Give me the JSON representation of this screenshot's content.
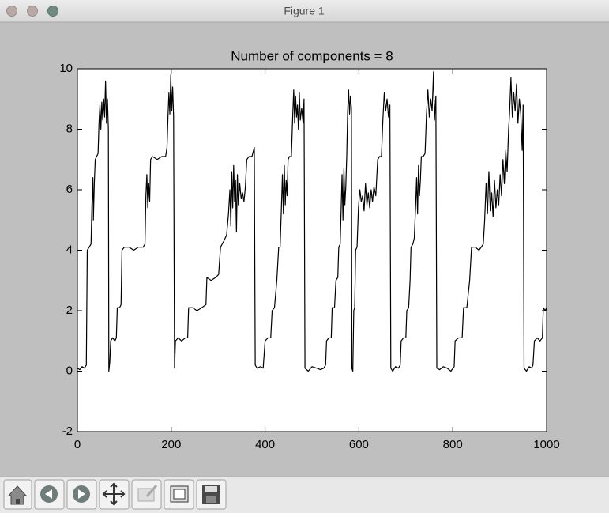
{
  "window": {
    "title": "Figure 1"
  },
  "chart_data": {
    "type": "line",
    "title": "Number of components = 8",
    "color": "#000000",
    "xlim": [
      0,
      1000
    ],
    "xticks": [
      0,
      200,
      400,
      600,
      800,
      1000
    ],
    "ylim": [
      -2,
      10
    ],
    "yticks": [
      -2,
      0,
      2,
      4,
      6,
      8,
      10
    ],
    "grid": false,
    "x": [
      0,
      5,
      10,
      15,
      19,
      21,
      25,
      29,
      31,
      33,
      34,
      36,
      38,
      41,
      44,
      46,
      48,
      50,
      52,
      54,
      56,
      58,
      60,
      62,
      64,
      66,
      67,
      69,
      71,
      75,
      80,
      83,
      85,
      90,
      93,
      95,
      100,
      110,
      120,
      130,
      140,
      144,
      146,
      148,
      150,
      152,
      154,
      156,
      160,
      170,
      180,
      188,
      191,
      193,
      195,
      197,
      199,
      201,
      203,
      205,
      207,
      209,
      215,
      222,
      230,
      235,
      237,
      245,
      255,
      265,
      274,
      276,
      285,
      295,
      301,
      305,
      312,
      318,
      322,
      325,
      327,
      329,
      331,
      333,
      335,
      337,
      339,
      341,
      343,
      346,
      349,
      352,
      355,
      358,
      361,
      366,
      372,
      377,
      379,
      383,
      390,
      396,
      400,
      406,
      412,
      415,
      420,
      425,
      429,
      432,
      435,
      437,
      439,
      441,
      443,
      445,
      447,
      449,
      452,
      456,
      459,
      461,
      463,
      465,
      467,
      469,
      471,
      473,
      475,
      478,
      481,
      483,
      485,
      492,
      500,
      510,
      518,
      525,
      529,
      531,
      536,
      541,
      543,
      548,
      551,
      555,
      557,
      560,
      562,
      564,
      566,
      568,
      570,
      572,
      574,
      576,
      578,
      580,
      582,
      584,
      585,
      587,
      589,
      591,
      593,
      596,
      599,
      602,
      605,
      608,
      611,
      614,
      617,
      620,
      623,
      626,
      629,
      632,
      636,
      640,
      644,
      648,
      651,
      654,
      657,
      660,
      663,
      666,
      668,
      672,
      678,
      684,
      688,
      690,
      695,
      700,
      702,
      706,
      709,
      711,
      715,
      718,
      721,
      723,
      725,
      727,
      729,
      731,
      733,
      737,
      741,
      744,
      747,
      750,
      753,
      756,
      759,
      761,
      764,
      766,
      772,
      780,
      788,
      796,
      803,
      805,
      812,
      820,
      823,
      830,
      836,
      840,
      848,
      856,
      865,
      868,
      871,
      874,
      877,
      880,
      883,
      886,
      889,
      892,
      895,
      898,
      901,
      904,
      907,
      910,
      913,
      916,
      919,
      921,
      924,
      927,
      930,
      933,
      936,
      939,
      942,
      945,
      948,
      950,
      952,
      957,
      963,
      968,
      971,
      974,
      980,
      986,
      991,
      993,
      997,
      1000
    ],
    "values": [
      0.1,
      0.05,
      0.15,
      0.1,
      0.2,
      4.0,
      4.1,
      4.2,
      5.5,
      6.4,
      5.0,
      6.2,
      7.0,
      7.1,
      7.2,
      8.2,
      8.8,
      8.0,
      8.9,
      8.3,
      9.0,
      8.4,
      9.6,
      8.2,
      9.0,
      8.0,
      0.0,
      0.3,
      1.0,
      1.1,
      1.0,
      1.1,
      2.1,
      2.1,
      2.2,
      4.0,
      4.1,
      4.1,
      4.0,
      4.1,
      4.1,
      4.2,
      5.8,
      6.5,
      5.4,
      6.2,
      5.6,
      7.0,
      7.1,
      7.0,
      7.1,
      7.1,
      7.4,
      8.4,
      9.2,
      8.5,
      9.8,
      8.6,
      9.4,
      8.4,
      0.1,
      1.0,
      1.1,
      1.0,
      1.1,
      1.1,
      2.1,
      2.1,
      2.0,
      2.1,
      2.2,
      3.1,
      3.0,
      3.1,
      3.2,
      4.1,
      4.3,
      4.5,
      5.2,
      6.0,
      4.8,
      6.6,
      5.4,
      6.8,
      5.6,
      6.3,
      4.6,
      6.5,
      5.5,
      6.2,
      5.7,
      5.9,
      5.6,
      6.1,
      7.0,
      7.1,
      7.1,
      7.4,
      0.2,
      0.1,
      0.15,
      0.1,
      1.0,
      1.1,
      1.1,
      2.0,
      2.1,
      3.0,
      4.1,
      4.1,
      5.5,
      6.5,
      5.2,
      6.8,
      5.5,
      6.3,
      5.8,
      7.0,
      7.1,
      7.1,
      8.5,
      9.3,
      8.2,
      9.1,
      8.4,
      8.8,
      8.0,
      9.2,
      8.3,
      8.7,
      8.2,
      9.0,
      0.1,
      0.0,
      0.15,
      0.1,
      0.05,
      0.1,
      0.2,
      1.0,
      1.1,
      1.1,
      2.1,
      2.1,
      3.0,
      3.1,
      4.1,
      4.2,
      5.3,
      6.5,
      5.0,
      6.7,
      5.5,
      6.1,
      7.1,
      8.6,
      9.3,
      8.5,
      9.1,
      8.7,
      0.1,
      0.0,
      2.0,
      2.1,
      4.0,
      4.1,
      5.4,
      6.0,
      5.6,
      5.8,
      5.3,
      6.2,
      5.5,
      5.9,
      5.4,
      6.0,
      5.6,
      6.1,
      5.8,
      7.0,
      7.1,
      7.1,
      8.3,
      9.2,
      8.6,
      9.0,
      8.4,
      8.8,
      0.1,
      0.0,
      0.15,
      0.1,
      0.2,
      1.0,
      1.1,
      1.1,
      2.0,
      2.1,
      3.0,
      4.1,
      4.2,
      4.4,
      5.5,
      6.4,
      5.2,
      6.8,
      5.8,
      6.3,
      7.1,
      7.1,
      7.2,
      8.5,
      9.3,
      8.4,
      9.0,
      8.6,
      9.9,
      8.3,
      9.1,
      0.1,
      0.05,
      0.15,
      0.1,
      0.0,
      0.15,
      1.0,
      1.1,
      1.1,
      2.1,
      2.1,
      3.0,
      4.1,
      4.1,
      4.0,
      4.2,
      5.0,
      6.2,
      5.2,
      6.6,
      5.3,
      5.9,
      5.1,
      6.3,
      5.4,
      6.0,
      5.5,
      6.5,
      5.8,
      7.0,
      6.2,
      7.3,
      6.6,
      8.0,
      8.5,
      9.7,
      8.4,
      9.2,
      8.6,
      9.5,
      8.2,
      9.0,
      8.5,
      7.3,
      8.8,
      0.1,
      0.0,
      0.15,
      0.1,
      0.2,
      1.0,
      1.1,
      1.0,
      1.1,
      2.1,
      2.0,
      2.1
    ]
  }
}
